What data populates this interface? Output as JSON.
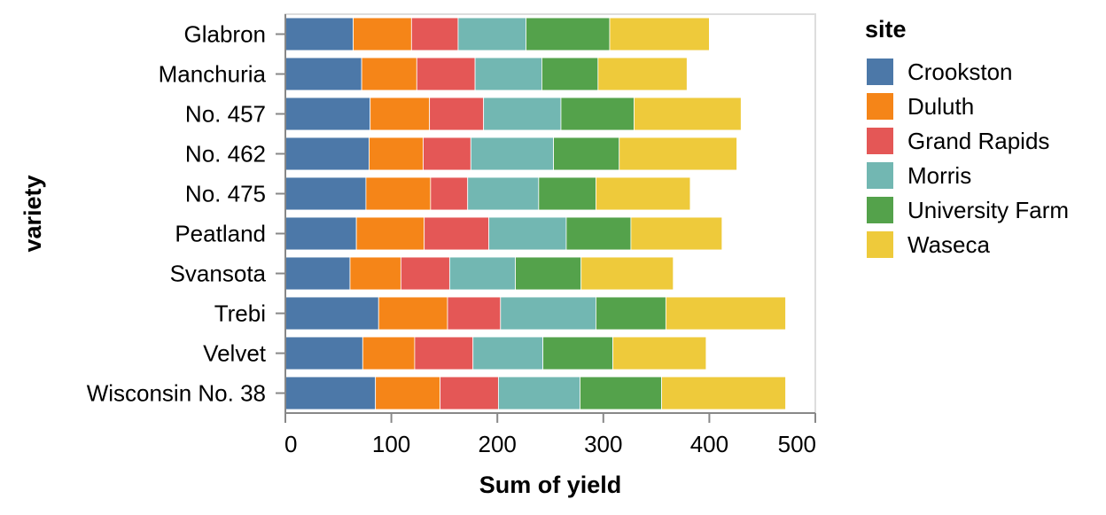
{
  "chart_data": {
    "type": "bar",
    "orientation": "horizontal",
    "stacked": true,
    "xlabel": "Sum of yield",
    "ylabel": "variety",
    "xlim": [
      0,
      500
    ],
    "xticks": [
      0,
      100,
      200,
      300,
      400,
      500
    ],
    "grid": false,
    "legend_title": "site",
    "legend_position": "right",
    "categories": [
      "Glabron",
      "Manchuria",
      "No. 457",
      "No. 462",
      "No. 475",
      "Peatland",
      "Svansota",
      "Trebi",
      "Velvet",
      "Wisconsin No. 38"
    ],
    "series": [
      {
        "name": "Crookston",
        "color": "#4c78a8",
        "values": [
          64,
          72,
          80,
          79,
          76,
          67,
          61,
          88,
          73,
          85
        ]
      },
      {
        "name": "Duluth",
        "color": "#f58518",
        "values": [
          55,
          52,
          56,
          51,
          61,
          64,
          48,
          65,
          49,
          61
        ]
      },
      {
        "name": "Grand Rapids",
        "color": "#e45756",
        "values": [
          44,
          55,
          51,
          45,
          35,
          61,
          46,
          50,
          55,
          55
        ]
      },
      {
        "name": "Morris",
        "color": "#72b7b2",
        "values": [
          64,
          63,
          73,
          78,
          67,
          73,
          62,
          90,
          66,
          77
        ]
      },
      {
        "name": "University Farm",
        "color": "#54a24b",
        "values": [
          79,
          53,
          69,
          62,
          54,
          61,
          62,
          66,
          66,
          77
        ]
      },
      {
        "name": "Waseca",
        "color": "#eeca3b",
        "values": [
          94,
          84,
          101,
          111,
          89,
          86,
          87,
          113,
          88,
          117
        ]
      }
    ]
  }
}
